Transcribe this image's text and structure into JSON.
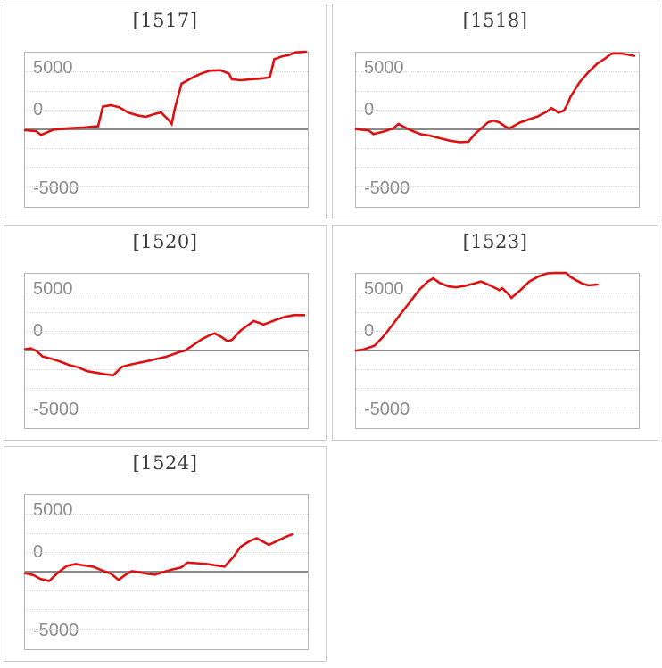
{
  "page": {
    "background": "#ffffff"
  },
  "colors": {
    "line": "#dd1111",
    "zero_line": "#8a8a8a",
    "gridline": "#d7d7d7",
    "plot_border": "#b5b5b5",
    "panel_border": "#cbcbcb",
    "title_text": "#3d3d3d",
    "axis_text": "#8c8c8c"
  },
  "axis": {
    "top": "5000",
    "zero": "0",
    "bottom": "-5000"
  },
  "chart_data": [
    {
      "type": "line",
      "title": "[1517]",
      "ylabel": "",
      "xlabel": "",
      "ylim": [
        -5000,
        5000
      ],
      "yticks": [
        "5000",
        "0",
        "-5000"
      ],
      "gridline_interval": 1250,
      "zero_line": true,
      "legend": "none",
      "points": [
        [
          0.0,
          -90
        ],
        [
          0.04,
          -150
        ],
        [
          0.057,
          -400
        ],
        [
          0.1,
          -60
        ],
        [
          0.157,
          40
        ],
        [
          0.21,
          95
        ],
        [
          0.26,
          170
        ],
        [
          0.277,
          1455
        ],
        [
          0.305,
          1550
        ],
        [
          0.336,
          1415
        ],
        [
          0.366,
          1075
        ],
        [
          0.4,
          890
        ],
        [
          0.43,
          790
        ],
        [
          0.462,
          985
        ],
        [
          0.484,
          1075
        ],
        [
          0.51,
          605
        ],
        [
          0.522,
          320
        ],
        [
          0.535,
          1455
        ],
        [
          0.557,
          2965
        ],
        [
          0.594,
          3340
        ],
        [
          0.626,
          3620
        ],
        [
          0.657,
          3815
        ],
        [
          0.695,
          3850
        ],
        [
          0.726,
          3620
        ],
        [
          0.736,
          3250
        ],
        [
          0.767,
          3190
        ],
        [
          0.805,
          3250
        ],
        [
          0.84,
          3300
        ],
        [
          0.871,
          3380
        ],
        [
          0.887,
          4570
        ],
        [
          0.915,
          4755
        ],
        [
          0.94,
          4850
        ],
        [
          0.962,
          5020
        ],
        [
          1.0,
          5060
        ]
      ]
    },
    {
      "type": "line",
      "title": "[1518]",
      "ylabel": "",
      "xlabel": "",
      "ylim": [
        -5000,
        5000
      ],
      "yticks": [
        "5000",
        "0",
        "-5000"
      ],
      "gridline_interval": 1250,
      "zero_line": true,
      "legend": "none",
      "points": [
        [
          0.0,
          -20
        ],
        [
          0.045,
          -100
        ],
        [
          0.062,
          -340
        ],
        [
          0.1,
          -170
        ],
        [
          0.135,
          60
        ],
        [
          0.151,
          320
        ],
        [
          0.19,
          -60
        ],
        [
          0.23,
          -350
        ],
        [
          0.26,
          -430
        ],
        [
          0.3,
          -620
        ],
        [
          0.335,
          -780
        ],
        [
          0.37,
          -870
        ],
        [
          0.4,
          -840
        ],
        [
          0.425,
          -300
        ],
        [
          0.45,
          100
        ],
        [
          0.47,
          430
        ],
        [
          0.49,
          550
        ],
        [
          0.51,
          420
        ],
        [
          0.53,
          170
        ],
        [
          0.545,
          30
        ],
        [
          0.565,
          230
        ],
        [
          0.585,
          430
        ],
        [
          0.6,
          520
        ],
        [
          0.615,
          620
        ],
        [
          0.63,
          720
        ],
        [
          0.645,
          800
        ],
        [
          0.655,
          900
        ],
        [
          0.665,
          1000
        ],
        [
          0.675,
          1090
        ],
        [
          0.685,
          1210
        ],
        [
          0.695,
          1360
        ],
        [
          0.71,
          1210
        ],
        [
          0.72,
          1060
        ],
        [
          0.73,
          1120
        ],
        [
          0.74,
          1200
        ],
        [
          0.752,
          1600
        ],
        [
          0.764,
          2130
        ],
        [
          0.796,
          3060
        ],
        [
          0.827,
          3720
        ],
        [
          0.859,
          4285
        ],
        [
          0.89,
          4660
        ],
        [
          0.906,
          4905
        ],
        [
          0.92,
          4945
        ],
        [
          0.945,
          4940
        ],
        [
          0.99,
          4790
        ]
      ]
    },
    {
      "type": "line",
      "title": "[1520]",
      "ylabel": "",
      "xlabel": "",
      "ylim": [
        -5000,
        5000
      ],
      "yticks": [
        "5000",
        "0",
        "-5000"
      ],
      "gridline_interval": 1250,
      "zero_line": true,
      "legend": "none",
      "points": [
        [
          0.0,
          50
        ],
        [
          0.02,
          110
        ],
        [
          0.04,
          -50
        ],
        [
          0.063,
          -420
        ],
        [
          0.094,
          -570
        ],
        [
          0.126,
          -760
        ],
        [
          0.157,
          -980
        ],
        [
          0.189,
          -1130
        ],
        [
          0.22,
          -1380
        ],
        [
          0.252,
          -1480
        ],
        [
          0.283,
          -1580
        ],
        [
          0.314,
          -1660
        ],
        [
          0.345,
          -1100
        ],
        [
          0.377,
          -940
        ],
        [
          0.44,
          -700
        ],
        [
          0.5,
          -450
        ],
        [
          0.55,
          -120
        ],
        [
          0.569,
          -40
        ],
        [
          0.6,
          340
        ],
        [
          0.63,
          720
        ],
        [
          0.66,
          1000
        ],
        [
          0.675,
          1095
        ],
        [
          0.7,
          850
        ],
        [
          0.72,
          585
        ],
        [
          0.736,
          655
        ],
        [
          0.767,
          1280
        ],
        [
          0.814,
          1910
        ],
        [
          0.849,
          1670
        ],
        [
          0.893,
          1990
        ],
        [
          0.925,
          2175
        ],
        [
          0.956,
          2290
        ],
        [
          0.994,
          2290
        ]
      ]
    },
    {
      "type": "line",
      "title": "[1523]",
      "ylabel": "",
      "xlabel": "",
      "ylim": [
        -5000,
        5000
      ],
      "yticks": [
        "5000",
        "0",
        "-5000"
      ],
      "gridline_interval": 1250,
      "zero_line": true,
      "legend": "none",
      "points": [
        [
          0.0,
          -35
        ],
        [
          0.025,
          30
        ],
        [
          0.066,
          285
        ],
        [
          0.098,
          905
        ],
        [
          0.13,
          1665
        ],
        [
          0.161,
          2420
        ],
        [
          0.193,
          3170
        ],
        [
          0.224,
          3930
        ],
        [
          0.256,
          4495
        ],
        [
          0.275,
          4700
        ],
        [
          0.298,
          4400
        ],
        [
          0.33,
          4170
        ],
        [
          0.356,
          4115
        ],
        [
          0.388,
          4210
        ],
        [
          0.42,
          4360
        ],
        [
          0.445,
          4495
        ],
        [
          0.47,
          4300
        ],
        [
          0.497,
          4060
        ],
        [
          0.51,
          3930
        ],
        [
          0.52,
          4060
        ],
        [
          0.54,
          3700
        ],
        [
          0.553,
          3420
        ],
        [
          0.585,
          3930
        ],
        [
          0.617,
          4495
        ],
        [
          0.648,
          4810
        ],
        [
          0.68,
          5030
        ],
        [
          0.71,
          5050
        ],
        [
          0.748,
          5050
        ],
        [
          0.764,
          4780
        ],
        [
          0.786,
          4550
        ],
        [
          0.805,
          4360
        ],
        [
          0.827,
          4245
        ],
        [
          0.859,
          4300
        ]
      ]
    },
    {
      "type": "line",
      "title": "[1524]",
      "ylabel": "",
      "xlabel": "",
      "ylim": [
        -5000,
        5000
      ],
      "yticks": [
        "5000",
        "0",
        "-5000"
      ],
      "gridline_interval": 1250,
      "zero_line": true,
      "legend": "none",
      "points": [
        [
          0.0,
          -130
        ],
        [
          0.03,
          -250
        ],
        [
          0.055,
          -510
        ],
        [
          0.086,
          -640
        ],
        [
          0.117,
          -100
        ],
        [
          0.148,
          340
        ],
        [
          0.18,
          470
        ],
        [
          0.21,
          380
        ],
        [
          0.243,
          300
        ],
        [
          0.274,
          50
        ],
        [
          0.305,
          -150
        ],
        [
          0.333,
          -565
        ],
        [
          0.358,
          -225
        ],
        [
          0.38,
          0
        ],
        [
          0.41,
          -75
        ],
        [
          0.435,
          -170
        ],
        [
          0.463,
          -225
        ],
        [
          0.494,
          -40
        ],
        [
          0.525,
          115
        ],
        [
          0.556,
          245
        ],
        [
          0.578,
          565
        ],
        [
          0.61,
          525
        ],
        [
          0.65,
          470
        ],
        [
          0.68,
          380
        ],
        [
          0.71,
          300
        ],
        [
          0.74,
          900
        ],
        [
          0.767,
          1600
        ],
        [
          0.8,
          1980
        ],
        [
          0.824,
          2165
        ],
        [
          0.868,
          1730
        ],
        [
          0.903,
          2035
        ],
        [
          0.934,
          2300
        ],
        [
          0.95,
          2410
        ]
      ]
    }
  ]
}
